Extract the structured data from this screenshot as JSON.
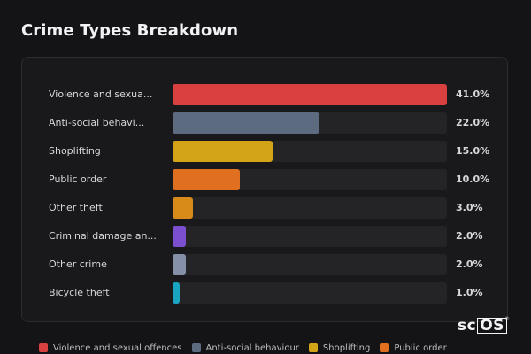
{
  "title": "Crime Types Breakdown",
  "chart_data": {
    "type": "bar",
    "orientation": "horizontal",
    "title": "Crime Types Breakdown",
    "categories": [
      "Violence and sexua...",
      "Anti-social behavi...",
      "Shoplifting",
      "Public order",
      "Other theft",
      "Criminal damage an...",
      "Other crime",
      "Bicycle theft"
    ],
    "values": [
      41.0,
      22.0,
      15.0,
      10.0,
      3.0,
      2.0,
      2.0,
      1.0
    ],
    "value_labels": [
      "41.0%",
      "22.0%",
      "15.0%",
      "10.0%",
      "3.0%",
      "2.0%",
      "2.0%",
      "1.0%"
    ],
    "colors": [
      "#d94141",
      "#5d6b80",
      "#d4a418",
      "#e0701f",
      "#d98b1a",
      "#7b4fcf",
      "#8590a6",
      "#19a4c2"
    ],
    "xlim": [
      0,
      41
    ],
    "unit": "%",
    "grid": false,
    "legend_position": "bottom"
  },
  "legend": [
    {
      "label": "Violence and sexual offences",
      "color": "#d94141"
    },
    {
      "label": "Anti-social behaviour",
      "color": "#5d6b80"
    },
    {
      "label": "Shoplifting",
      "color": "#d4a418"
    },
    {
      "label": "Public order",
      "color": "#e0701f"
    }
  ],
  "logo": {
    "prefix": "sc",
    "boxed": "OS",
    "mark": "®"
  }
}
